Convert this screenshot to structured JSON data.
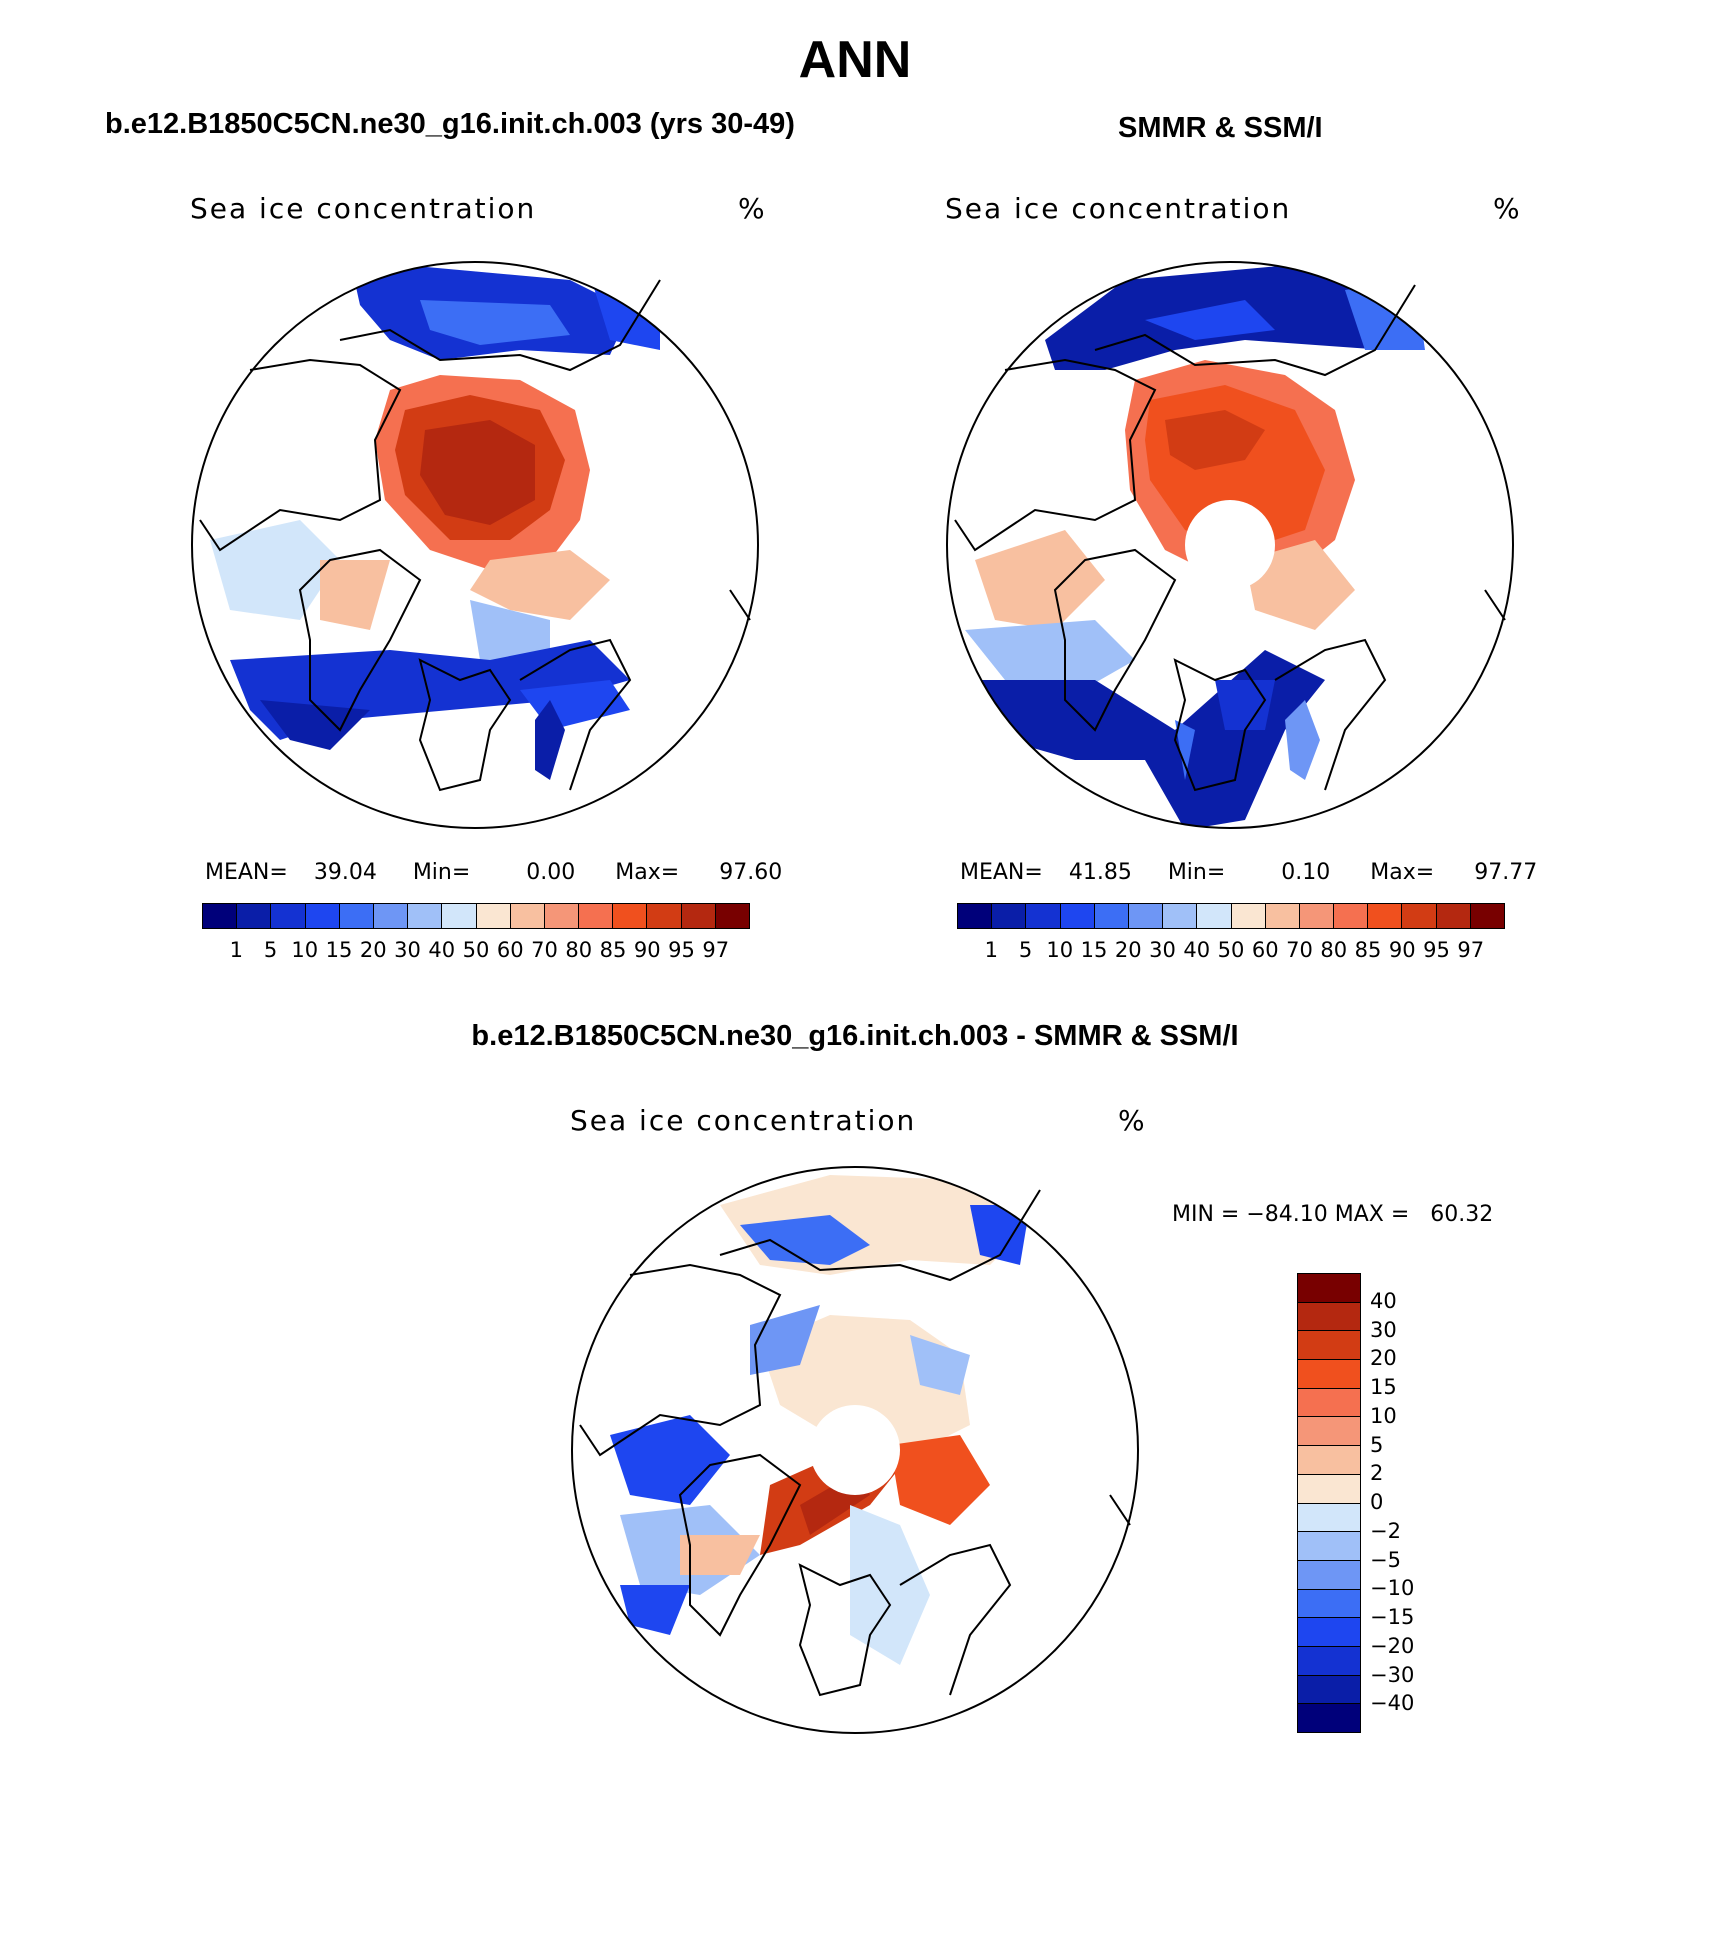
{
  "title": "ANN",
  "panels": [
    {
      "id": "model",
      "heading": "b.e12.B1850C5CN.ne30_g16.init.ch.003 (yrs 30-49)",
      "variable": "Sea ice concentration",
      "units": "%",
      "stats": {
        "mean_label": "MEAN=",
        "mean": "39.04",
        "min_label": "Min=",
        "min": "0.00",
        "max_label": "Max=",
        "max": "97.60"
      },
      "pole_hole": false
    },
    {
      "id": "obs",
      "heading": "SMMR & SSM/I",
      "variable": "Sea ice concentration",
      "units": "%",
      "stats": {
        "mean_label": "MEAN=",
        "mean": "41.85",
        "min_label": "Min=",
        "min": "0.10",
        "max_label": "Max=",
        "max": "97.77"
      },
      "pole_hole": true
    },
    {
      "id": "diff",
      "heading": "b.e12.B1850C5CN.ne30_g16.init.ch.003 - SMMR & SSM/I",
      "variable": "Sea ice concentration",
      "units": "%",
      "minmax": "MIN = −84.10 MAX =   60.32",
      "pole_hole": true
    }
  ],
  "colorbar_abs": {
    "labels": [
      "1",
      "5",
      "10",
      "15",
      "20",
      "30",
      "40",
      "50",
      "60",
      "70",
      "80",
      "85",
      "90",
      "95",
      "97"
    ],
    "colors": [
      "#00007a",
      "#0a1ea8",
      "#1432d2",
      "#1e46f0",
      "#3c6ef5",
      "#6e96f5",
      "#a0c0f8",
      "#d2e6fa",
      "#fae6d2",
      "#f8c0a0",
      "#f59678",
      "#f57050",
      "#f0501e",
      "#d23c14",
      "#b42810",
      "#780000"
    ]
  },
  "colorbar_diff": {
    "labels": [
      "40",
      "30",
      "20",
      "15",
      "10",
      "5",
      "2",
      "0",
      "−2",
      "−5",
      "−10",
      "−15",
      "−20",
      "−30",
      "−40"
    ],
    "colors": [
      "#780000",
      "#b42810",
      "#d23c14",
      "#f0501e",
      "#f57050",
      "#f59678",
      "#f8c0a0",
      "#fae6d2",
      "#d2e6fa",
      "#a0c0f8",
      "#6e96f5",
      "#3c6ef5",
      "#1e46f0",
      "#1432d2",
      "#0a1ea8",
      "#00007a"
    ]
  }
}
